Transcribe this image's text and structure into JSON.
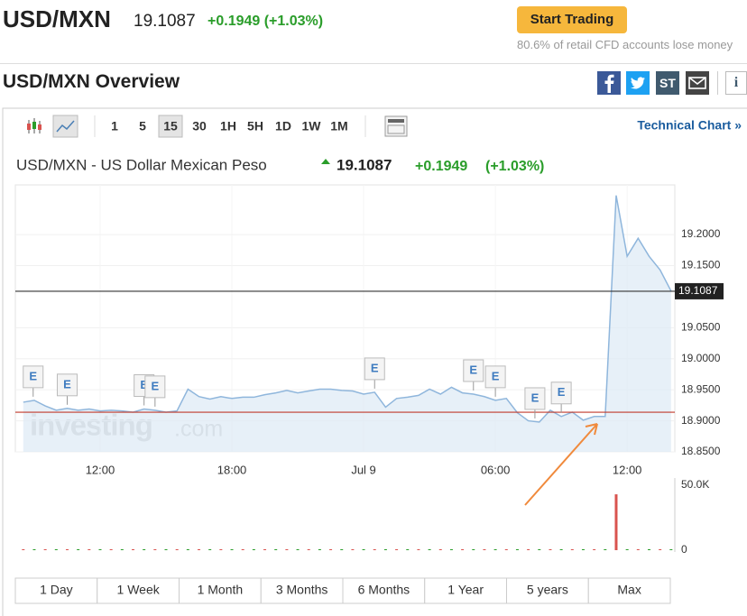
{
  "header": {
    "pair": "USD/MXN",
    "price": "19.1087",
    "change": "+0.1949 (+1.03%)",
    "button": "Start Trading",
    "disclaimer": "80.6% of retail CFD accounts lose money"
  },
  "overview": {
    "title": "USD/MXN Overview",
    "stocktwits": "ST",
    "info": "i"
  },
  "toolbar": {
    "timeframes": [
      "1",
      "5",
      "15",
      "30",
      "1H",
      "5H",
      "1D",
      "1W",
      "1M"
    ],
    "active": "15",
    "technical": "Technical Chart »"
  },
  "chart_header": {
    "name": "USD/MXN - US Dollar Mexican Peso",
    "price": "19.1087",
    "change": "+0.1949",
    "percent": "(+1.03%)"
  },
  "chart_data": {
    "type": "line",
    "categories": [
      null,
      null,
      null,
      null,
      null,
      null,
      null,
      "12:00",
      null,
      null,
      null,
      null,
      null,
      null,
      null,
      null,
      null,
      null,
      null,
      "18:00",
      null,
      null,
      null,
      null,
      null,
      null,
      null,
      null,
      null,
      null,
      null,
      "Jul 9",
      null,
      null,
      null,
      null,
      null,
      null,
      null,
      null,
      null,
      null,
      null,
      "06:00",
      null,
      null,
      null,
      null,
      null,
      null,
      null,
      null,
      null,
      null,
      null,
      "12:00",
      null,
      null,
      null,
      null
    ],
    "series": [
      {
        "color": "#8fb6dc",
        "values": [
          18.93,
          18.933,
          18.924,
          18.917,
          18.92,
          18.917,
          18.919,
          18.916,
          18.917,
          18.916,
          18.914,
          18.919,
          18.917,
          18.914,
          18.916,
          18.951,
          18.939,
          18.935,
          18.939,
          18.936,
          18.938,
          18.938,
          18.942,
          18.945,
          18.949,
          18.945,
          18.948,
          18.951,
          18.951,
          18.949,
          18.948,
          18.943,
          18.946,
          18.922,
          18.936,
          18.938,
          18.941,
          18.951,
          18.943,
          18.954,
          18.945,
          18.943,
          18.939,
          18.933,
          18.936,
          18.913,
          18.9,
          18.898,
          18.917,
          18.907,
          18.914,
          18.901,
          18.907,
          18.907,
          19.263,
          19.165,
          19.194,
          19.165,
          19.143,
          19.109
        ]
      }
    ],
    "ylim": [
      18.85,
      19.28
    ],
    "yticks": [
      {
        "value": 18.85,
        "label": "18.8500"
      },
      {
        "value": 18.9,
        "label": "18.9000"
      },
      {
        "value": 18.95,
        "label": "18.9500"
      },
      {
        "value": 19.0,
        "label": "19.0000"
      },
      {
        "value": 19.05,
        "label": "19.0500"
      },
      {
        "value": 19.15,
        "label": "19.1500"
      },
      {
        "value": 19.2,
        "label": "19.2000"
      }
    ],
    "reference_lines": [
      {
        "value": 19.1087,
        "color": "#333333"
      },
      {
        "value": 18.9138,
        "color": "#c0392b"
      }
    ],
    "grid": true,
    "events": [
      {
        "x": 0.9,
        "label": "E"
      },
      {
        "x": 4,
        "label": "E"
      },
      {
        "x": 11,
        "label": "E"
      },
      {
        "x": 12,
        "label": "E"
      },
      {
        "x": 32,
        "label": "E"
      },
      {
        "x": 41,
        "label": "E"
      },
      {
        "x": 43,
        "label": "E"
      },
      {
        "x": 46.6,
        "label": "E"
      },
      {
        "x": 49,
        "label": "E"
      }
    ],
    "watermark": [
      "investing",
      ".com"
    ],
    "volume": {
      "color": "#d9534f",
      "values": [
        0,
        0,
        0,
        0,
        0,
        0,
        0,
        0,
        0,
        0,
        0,
        0,
        0,
        0,
        0,
        0,
        0,
        0,
        0,
        0,
        0,
        0,
        0,
        0,
        0,
        0,
        0,
        0,
        0,
        0,
        0,
        0,
        0,
        0,
        0,
        0,
        0,
        0,
        0,
        0,
        0,
        0,
        0,
        0,
        0,
        0,
        0,
        0,
        0,
        0,
        0,
        0,
        0,
        0,
        43000,
        0,
        0,
        0,
        0,
        0
      ],
      "ylim": [
        0,
        50000
      ],
      "yticks": [
        0,
        {
          "value": 50000,
          "label": "50.0K"
        }
      ]
    }
  },
  "ranges": [
    "1 Day",
    "1 Week",
    "1 Month",
    "3 Months",
    "6 Months",
    "1 Year",
    "5 years",
    "Max"
  ]
}
